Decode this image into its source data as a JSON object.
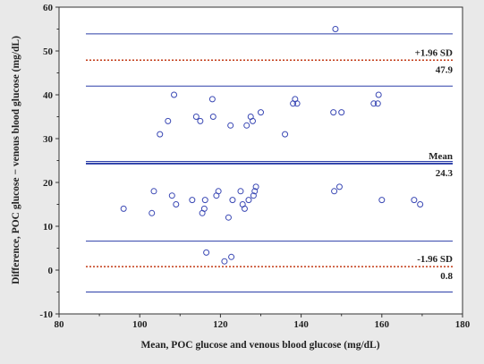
{
  "chart_data": {
    "type": "scatter",
    "xlabel": "Mean, POC glucose and venous blood glucose (mg/dL)",
    "ylabel": "Difference, POC glucose − venous blood glucose (mg/dL)",
    "xlim": [
      80,
      180
    ],
    "ylim": [
      -10,
      60
    ],
    "x_ticks": [
      "80",
      "100",
      "120",
      "140",
      "160",
      "180"
    ],
    "y_ticks": [
      "-10",
      "0",
      "10",
      "20",
      "30",
      "40",
      "50",
      "60"
    ],
    "grid": false,
    "marker": "open-circle",
    "points": [
      [
        96,
        14
      ],
      [
        103,
        13
      ],
      [
        103.5,
        18
      ],
      [
        105,
        31
      ],
      [
        107,
        34
      ],
      [
        108,
        17
      ],
      [
        108.5,
        40
      ],
      [
        109,
        15
      ],
      [
        113,
        16
      ],
      [
        114,
        35
      ],
      [
        115,
        34
      ],
      [
        115.5,
        13
      ],
      [
        116,
        14
      ],
      [
        116.2,
        16
      ],
      [
        116.5,
        4
      ],
      [
        118,
        39
      ],
      [
        118.2,
        35
      ],
      [
        119,
        17
      ],
      [
        119.5,
        18
      ],
      [
        121,
        2
      ],
      [
        122,
        12
      ],
      [
        122.5,
        33
      ],
      [
        122.7,
        3
      ],
      [
        123,
        16
      ],
      [
        125,
        18
      ],
      [
        125.5,
        15
      ],
      [
        126,
        14
      ],
      [
        126.5,
        33
      ],
      [
        127,
        16
      ],
      [
        127.5,
        35
      ],
      [
        128,
        34
      ],
      [
        128.2,
        17
      ],
      [
        128.5,
        18
      ],
      [
        128.8,
        19
      ],
      [
        130,
        36
      ],
      [
        136,
        31
      ],
      [
        138,
        38
      ],
      [
        138.5,
        39
      ],
      [
        139,
        38
      ],
      [
        148,
        36
      ],
      [
        148.2,
        18
      ],
      [
        148.5,
        55
      ],
      [
        149.5,
        19
      ],
      [
        150,
        36
      ],
      [
        158,
        38
      ],
      [
        159,
        38
      ],
      [
        159.2,
        40
      ],
      [
        160,
        16
      ],
      [
        168,
        16
      ],
      [
        169.5,
        15
      ]
    ],
    "reference_lines": [
      {
        "kind": "mean",
        "y": 24.3,
        "label": "Mean",
        "value_label": "24.3",
        "color": "#2b3ea8",
        "style": "solid",
        "width": 2
      },
      {
        "kind": "mean-ci-upper",
        "y": 24.8,
        "color": "#2b3ea8",
        "style": "solid",
        "width": 1
      },
      {
        "kind": "upper-loa",
        "y": 47.9,
        "label": "+1.96 SD",
        "value_label": "47.9",
        "color": "#c23a16",
        "style": "dotted",
        "width": 1.5
      },
      {
        "kind": "upper-loa-ci-upper",
        "y": 53.9,
        "color": "#2b3ea8",
        "style": "solid",
        "width": 1
      },
      {
        "kind": "upper-loa-ci-lower",
        "y": 42.0,
        "color": "#2b3ea8",
        "style": "solid",
        "width": 1
      },
      {
        "kind": "lower-loa",
        "y": 0.8,
        "label": "-1.96 SD",
        "value_label": "0.8",
        "color": "#c23a16",
        "style": "dotted",
        "width": 1.5
      },
      {
        "kind": "lower-loa-ci-upper",
        "y": 6.6,
        "color": "#2b3ea8",
        "style": "solid",
        "width": 1
      },
      {
        "kind": "lower-loa-ci-lower",
        "y": -5.0,
        "color": "#2b3ea8",
        "style": "solid",
        "width": 1
      }
    ],
    "colors": {
      "background": "#e9e9e9",
      "plot_background": "#ffffff",
      "axis": "#333333",
      "marker": "#3a48b4",
      "mean_line": "#2b3ea8",
      "loa_line": "#c23a16"
    }
  }
}
